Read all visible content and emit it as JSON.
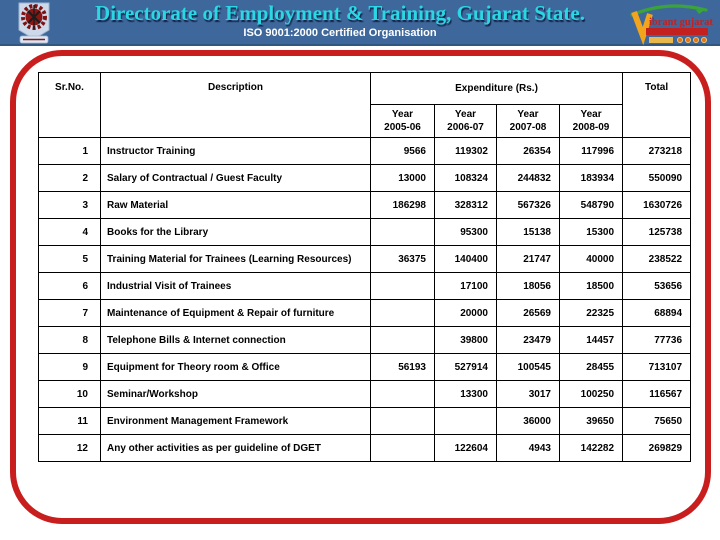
{
  "header": {
    "title": "Directorate of Employment & Training, Gujarat State.",
    "subtitle": "ISO 9001:2000 Certified Organisation",
    "left_logo": "det-gujarat-emblem",
    "right_logo": "vibrant-gujarat",
    "colors": {
      "bar_background": "#3e689c",
      "title_text": "#2bd7e4",
      "subtitle_text": "#ffffff"
    }
  },
  "slide": {
    "border_color": "#c81e1e",
    "background": "#ffffff"
  },
  "table": {
    "header": {
      "sr_no": "Sr.No.",
      "description": "Description",
      "expenditure": "Expenditure (Rs.)",
      "total": "Total",
      "years": [
        "Year 2005-06",
        "Year 2006-07",
        "Year 2007-08",
        "Year 2008-09"
      ]
    },
    "rows": [
      {
        "sr": "1",
        "description": "Instructor Training",
        "values": [
          "9566",
          "119302",
          "26354",
          "117996"
        ],
        "total": "273218"
      },
      {
        "sr": "2",
        "description": "Salary of Contractual / Guest Faculty",
        "values": [
          "13000",
          "108324",
          "244832",
          "183934"
        ],
        "total": "550090"
      },
      {
        "sr": "3",
        "description": "Raw Material",
        "values": [
          "186298",
          "328312",
          "567326",
          "548790"
        ],
        "total": "1630726"
      },
      {
        "sr": "4",
        "description": "Books for the Library",
        "values": [
          "",
          "95300",
          "15138",
          "15300"
        ],
        "total": "125738"
      },
      {
        "sr": "5",
        "description": "Training Material for Trainees (Learning Resources)",
        "values": [
          "36375",
          "140400",
          "21747",
          "40000"
        ],
        "total": "238522"
      },
      {
        "sr": "6",
        "description": "Industrial Visit of Trainees",
        "values": [
          "",
          "17100",
          "18056",
          "18500"
        ],
        "total": "53656"
      },
      {
        "sr": "7",
        "description": "Maintenance of Equipment & Repair of furniture",
        "values": [
          "",
          "20000",
          "26569",
          "22325"
        ],
        "total": "68894"
      },
      {
        "sr": "8",
        "description": "Telephone Bills & Internet connection",
        "values": [
          "",
          "39800",
          "23479",
          "14457"
        ],
        "total": "77736"
      },
      {
        "sr": "9",
        "description": "Equipment for Theory room & Office",
        "values": [
          "56193",
          "527914",
          "100545",
          "28455"
        ],
        "total": "713107"
      },
      {
        "sr": "10",
        "description": "Seminar/Workshop",
        "values": [
          "",
          "13300",
          "3017",
          "100250"
        ],
        "total": "116567"
      },
      {
        "sr": "11",
        "description": "Environment Management Framework",
        "values": [
          "",
          "",
          "36000",
          "39650"
        ],
        "total": "75650"
      },
      {
        "sr": "12",
        "description": "Any other activities as per guideline of DGET",
        "values": [
          "",
          "122604",
          "4943",
          "142282"
        ],
        "total": "269829"
      }
    ]
  }
}
